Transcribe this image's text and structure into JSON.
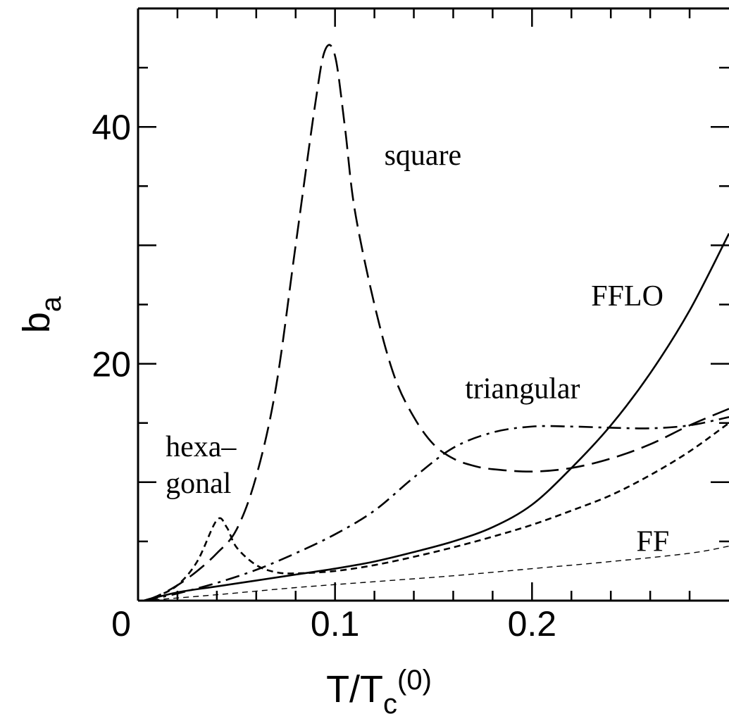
{
  "chart_data": {
    "type": "line",
    "xlabel": {
      "main": "T/T",
      "sub": "c",
      "sup": "(0)"
    },
    "ylabel": {
      "main": "b",
      "sub": "a"
    },
    "xlim": [
      0,
      0.3
    ],
    "ylim": [
      0,
      50
    ],
    "x_ticks": [
      {
        "value": 0,
        "label": "0"
      },
      {
        "value": 0.1,
        "label": "0.1"
      },
      {
        "value": 0.2,
        "label": "0.2"
      }
    ],
    "y_ticks": [
      {
        "value": 20,
        "label": "20"
      },
      {
        "value": 40,
        "label": "40"
      }
    ],
    "grid": false,
    "series": [
      {
        "name": "square",
        "style": "long-dash",
        "points": [
          [
            0.003,
            0
          ],
          [
            0.01,
            0.4
          ],
          [
            0.02,
            1.3
          ],
          [
            0.03,
            2.5
          ],
          [
            0.04,
            4
          ],
          [
            0.05,
            6
          ],
          [
            0.06,
            10.5
          ],
          [
            0.07,
            18
          ],
          [
            0.08,
            30
          ],
          [
            0.09,
            42
          ],
          [
            0.095,
            46.5
          ],
          [
            0.1,
            46
          ],
          [
            0.105,
            40
          ],
          [
            0.11,
            33
          ],
          [
            0.12,
            25
          ],
          [
            0.13,
            19
          ],
          [
            0.14,
            15.5
          ],
          [
            0.15,
            13.2
          ],
          [
            0.16,
            12
          ],
          [
            0.17,
            11.4
          ],
          [
            0.18,
            11.1
          ],
          [
            0.2,
            10.9
          ],
          [
            0.22,
            11.2
          ],
          [
            0.24,
            12
          ],
          [
            0.26,
            13.2
          ],
          [
            0.28,
            14.8
          ],
          [
            0.3,
            16.2
          ]
        ]
      },
      {
        "name": "triangular",
        "style": "dash-dot",
        "points": [
          [
            0.003,
            0
          ],
          [
            0.02,
            0.6
          ],
          [
            0.04,
            1.5
          ],
          [
            0.06,
            2.6
          ],
          [
            0.08,
            4
          ],
          [
            0.1,
            5.6
          ],
          [
            0.12,
            7.6
          ],
          [
            0.14,
            10.4
          ],
          [
            0.16,
            12.9
          ],
          [
            0.18,
            14.2
          ],
          [
            0.2,
            14.7
          ],
          [
            0.22,
            14.7
          ],
          [
            0.24,
            14.6
          ],
          [
            0.26,
            14.55
          ],
          [
            0.28,
            14.8
          ],
          [
            0.3,
            15.5
          ]
        ]
      },
      {
        "name": "hexagonal",
        "style": "short-dash",
        "points": [
          [
            0.003,
            0
          ],
          [
            0.01,
            0.4
          ],
          [
            0.02,
            1.3
          ],
          [
            0.03,
            3.3
          ],
          [
            0.04,
            6.8
          ],
          [
            0.045,
            6.2
          ],
          [
            0.05,
            4.5
          ],
          [
            0.06,
            3
          ],
          [
            0.07,
            2.4
          ],
          [
            0.08,
            2.3
          ],
          [
            0.1,
            2.5
          ],
          [
            0.12,
            3
          ],
          [
            0.14,
            3.7
          ],
          [
            0.16,
            4.5
          ],
          [
            0.18,
            5.4
          ],
          [
            0.2,
            6.4
          ],
          [
            0.22,
            7.6
          ],
          [
            0.24,
            8.9
          ],
          [
            0.26,
            10.6
          ],
          [
            0.28,
            12.6
          ],
          [
            0.3,
            15
          ]
        ]
      },
      {
        "name": "FFLO",
        "style": "solid",
        "points": [
          [
            0.003,
            0
          ],
          [
            0.02,
            0.7
          ],
          [
            0.04,
            1.2
          ],
          [
            0.06,
            1.7
          ],
          [
            0.08,
            2.2
          ],
          [
            0.1,
            2.7
          ],
          [
            0.12,
            3.3
          ],
          [
            0.14,
            4.1
          ],
          [
            0.16,
            5
          ],
          [
            0.18,
            6.2
          ],
          [
            0.2,
            8.1
          ],
          [
            0.22,
            11.2
          ],
          [
            0.24,
            14.8
          ],
          [
            0.26,
            19.2
          ],
          [
            0.28,
            24.5
          ],
          [
            0.3,
            31
          ]
        ]
      },
      {
        "name": "FF",
        "style": "thin-dash",
        "points": [
          [
            0.003,
            0
          ],
          [
            0.04,
            0.5
          ],
          [
            0.08,
            1.1
          ],
          [
            0.12,
            1.6
          ],
          [
            0.16,
            2.1
          ],
          [
            0.2,
            2.7
          ],
          [
            0.24,
            3.3
          ],
          [
            0.28,
            4
          ],
          [
            0.3,
            4.6
          ]
        ]
      }
    ],
    "annotations": [
      {
        "id": "square",
        "lines": [
          "square"
        ],
        "x": 0.125,
        "y": 36.8
      },
      {
        "id": "fflo",
        "lines": [
          "FFLO"
        ],
        "x": 0.23,
        "y": 24.9
      },
      {
        "id": "triangular",
        "lines": [
          "triangular"
        ],
        "x": 0.166,
        "y": 17.1
      },
      {
        "id": "hexagonal",
        "lines": [
          "hexa–",
          "gonal"
        ],
        "x": 0.014,
        "y": 12.2
      },
      {
        "id": "ff",
        "lines": [
          "FF"
        ],
        "x": 0.253,
        "y": 4.2
      }
    ]
  }
}
